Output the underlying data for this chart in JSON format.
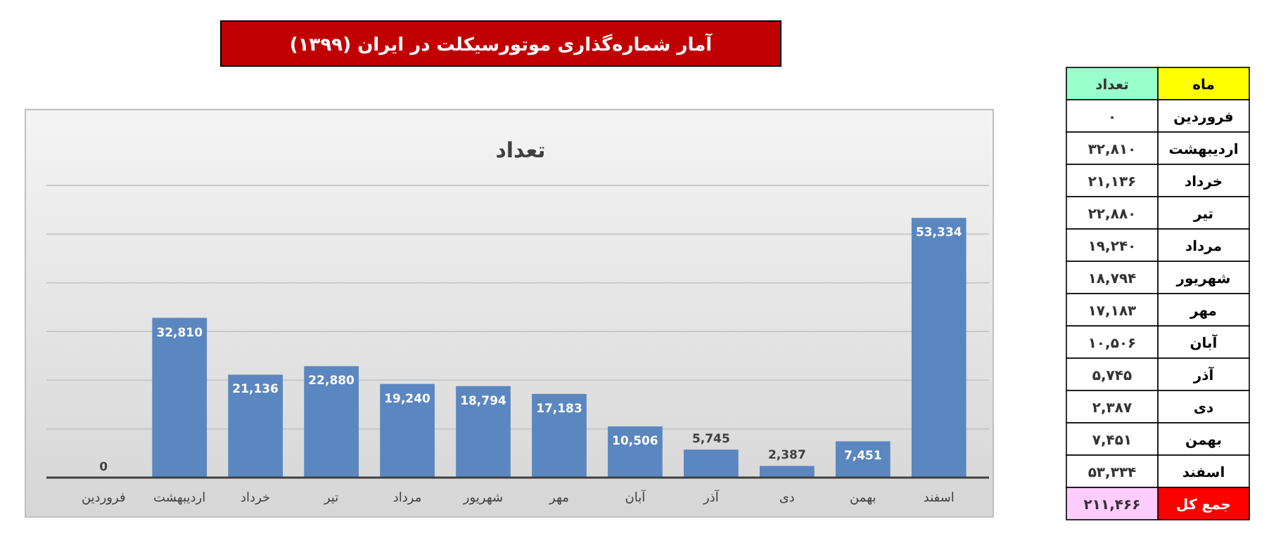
{
  "chart_data": {
    "type": "bar",
    "title": "آمار شماره‌گذاری موتورسیکلت در ایران  (۱۳۹۹)",
    "subtitle": "تعداد",
    "categories": [
      "فروردین",
      "اردیبهشت",
      "خرداد",
      "تیر",
      "مرداد",
      "شهریور",
      "مهر",
      "آبان",
      "آذر",
      "دی",
      "بهمن",
      "اسفند"
    ],
    "values": [
      0,
      32810,
      21136,
      22880,
      19240,
      18794,
      17183,
      10506,
      5745,
      2387,
      7451,
      53334
    ],
    "value_labels": [
      "0",
      "32,810",
      "21,136",
      "22,880",
      "19,240",
      "18,794",
      "17,183",
      "10,506",
      "5,745",
      "2,387",
      "7,451",
      "53,334"
    ],
    "color": "#5b87c0",
    "ylim": [
      0,
      60000
    ],
    "yticks": [
      {
        "value": 0,
        "label": null
      },
      {
        "value": 10000,
        "label": null
      },
      {
        "value": 20000,
        "label": null
      },
      {
        "value": 30000,
        "label": null
      },
      {
        "value": 40000,
        "label": null
      },
      {
        "value": 50000,
        "label": null
      },
      {
        "value": 60000,
        "label": null
      }
    ],
    "grid": "y",
    "tick_labels": "x",
    "annotations": [
      "ماه",
      "تعداد",
      "فروردین",
      "۰",
      "اردیبهشت",
      "۳۲,۸۱۰",
      "خرداد",
      "۲۱,۱۳۶",
      "تیر",
      "۲۲,۸۸۰",
      "مرداد",
      "۱۹,۲۴۰",
      "شهریور",
      "۱۸,۷۹۴",
      "مهر",
      "۱۷,۱۸۳",
      "آبان",
      "۱۰,۵۰۶",
      "آذر",
      "۵,۷۴۵",
      "دی",
      "۲,۳۸۷",
      "بهمن",
      "۷,۴۵۱",
      "اسفند",
      "۵۳,۳۳۴",
      "جمع کل",
      "۲۱۱,۴۶۶"
    ]
  }
}
